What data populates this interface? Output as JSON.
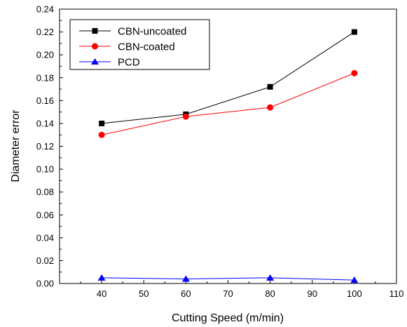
{
  "chart_data": {
    "type": "line",
    "xlabel": "Cutting Speed (m/min)",
    "ylabel": "Diameter error",
    "xlim": [
      30,
      110
    ],
    "ylim": [
      0,
      0.24
    ],
    "x_ticks": [
      "40",
      "50",
      "60",
      "70",
      "80",
      "90",
      "100",
      "110"
    ],
    "y_ticks": [
      "0.00",
      "0.02",
      "0.04",
      "0.06",
      "0.08",
      "0.10",
      "0.12",
      "0.14",
      "0.16",
      "0.18",
      "0.20",
      "0.22",
      "0.24"
    ],
    "x": [
      40,
      60,
      80,
      100
    ],
    "grid": false,
    "legend_position": "top-left",
    "series": [
      {
        "name": "CBN-uncoated",
        "values": [
          0.14,
          0.148,
          0.172,
          0.22
        ],
        "color": "#000000",
        "marker": "square"
      },
      {
        "name": "CBN-coated",
        "values": [
          0.13,
          0.146,
          0.154,
          0.184
        ],
        "color": "#ff0000",
        "marker": "circle"
      },
      {
        "name": "PCD",
        "values": [
          0.005,
          0.004,
          0.005,
          0.003
        ],
        "color": "#0000ff",
        "marker": "triangle"
      }
    ]
  }
}
